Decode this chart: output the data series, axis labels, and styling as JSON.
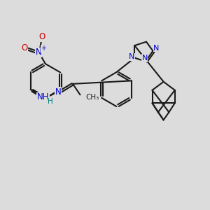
{
  "bg_color": "#dcdcdc",
  "bond_color": "#1a1a1a",
  "n_color": "#0000cc",
  "o_color": "#cc0000",
  "h_color": "#008080",
  "line_width": 1.5,
  "figsize": [
    3.0,
    3.0
  ],
  "dpi": 100,
  "xlim": [
    0,
    10
  ],
  "ylim": [
    0,
    10
  ]
}
